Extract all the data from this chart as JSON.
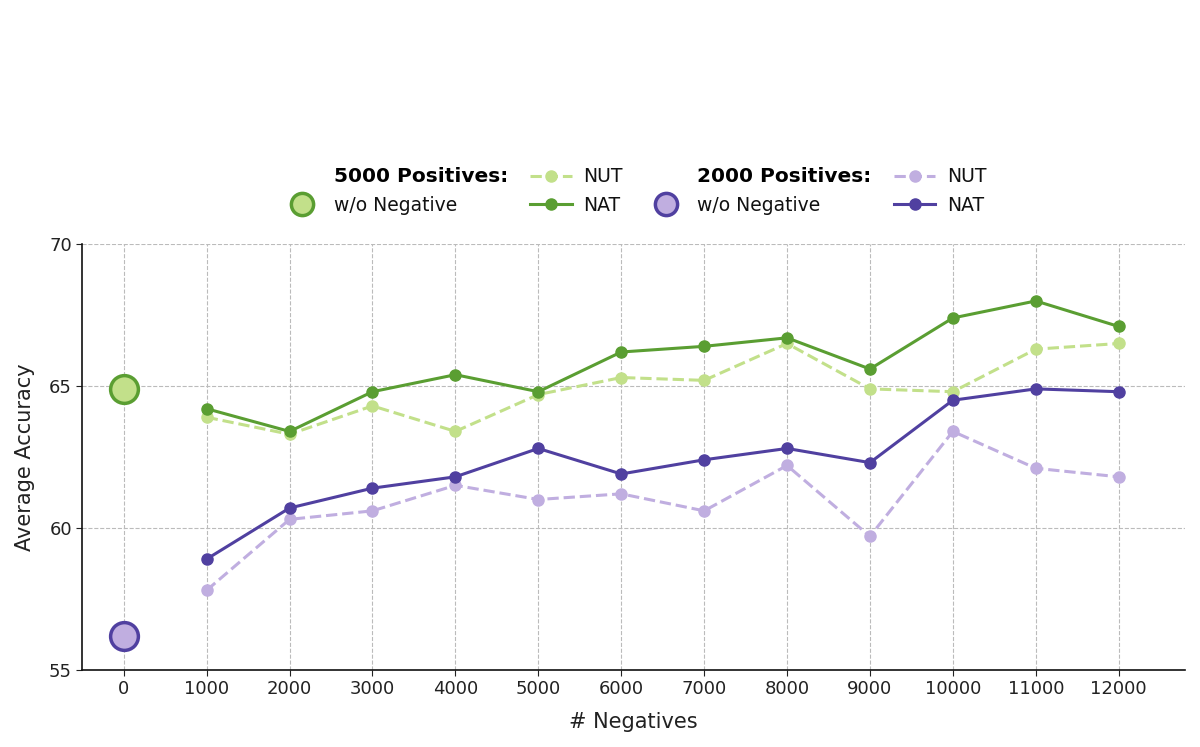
{
  "x_negatives": [
    0,
    1000,
    2000,
    3000,
    4000,
    5000,
    6000,
    7000,
    8000,
    9000,
    10000,
    11000,
    12000
  ],
  "pos5000_wo_neg_x": [
    0
  ],
  "pos5000_wo_neg_y": [
    64.9
  ],
  "pos5000_NUT_x": [
    1000,
    2000,
    3000,
    4000,
    5000,
    6000,
    7000,
    8000,
    9000,
    10000,
    11000,
    12000
  ],
  "pos5000_NUT_y": [
    63.9,
    63.3,
    64.3,
    63.4,
    64.7,
    65.3,
    65.2,
    66.5,
    64.9,
    64.8,
    66.3,
    66.5
  ],
  "pos5000_NAT_x": [
    1000,
    2000,
    3000,
    4000,
    5000,
    6000,
    7000,
    8000,
    9000,
    10000,
    11000,
    12000
  ],
  "pos5000_NAT_y": [
    64.2,
    63.4,
    64.8,
    65.4,
    64.8,
    66.2,
    66.4,
    66.7,
    65.6,
    67.4,
    68.0,
    67.1
  ],
  "pos2000_wo_neg_x": [
    0
  ],
  "pos2000_wo_neg_y": [
    56.2
  ],
  "pos2000_NUT_x": [
    1000,
    2000,
    3000,
    4000,
    5000,
    6000,
    7000,
    8000,
    9000,
    10000,
    11000,
    12000
  ],
  "pos2000_NUT_y": [
    57.8,
    60.3,
    60.6,
    61.5,
    61.0,
    61.2,
    60.6,
    62.2,
    59.7,
    63.4,
    62.1,
    61.8
  ],
  "pos2000_NAT_x": [
    1000,
    2000,
    3000,
    4000,
    5000,
    6000,
    7000,
    8000,
    9000,
    10000,
    11000,
    12000
  ],
  "pos2000_NAT_y": [
    58.9,
    60.7,
    61.4,
    61.8,
    62.8,
    61.9,
    62.4,
    62.8,
    62.3,
    64.5,
    64.9,
    64.8
  ],
  "color_green_dark": "#5a9e32",
  "color_green_light": "#c2e08a",
  "color_purple_dark": "#5040a0",
  "color_purple_light": "#c0aee0",
  "ylabel": "Average Accuracy",
  "xlabel": "# Negatives",
  "ylim": [
    55,
    70
  ],
  "yticks": [
    55,
    60,
    65,
    70
  ],
  "background_color": "#ffffff"
}
